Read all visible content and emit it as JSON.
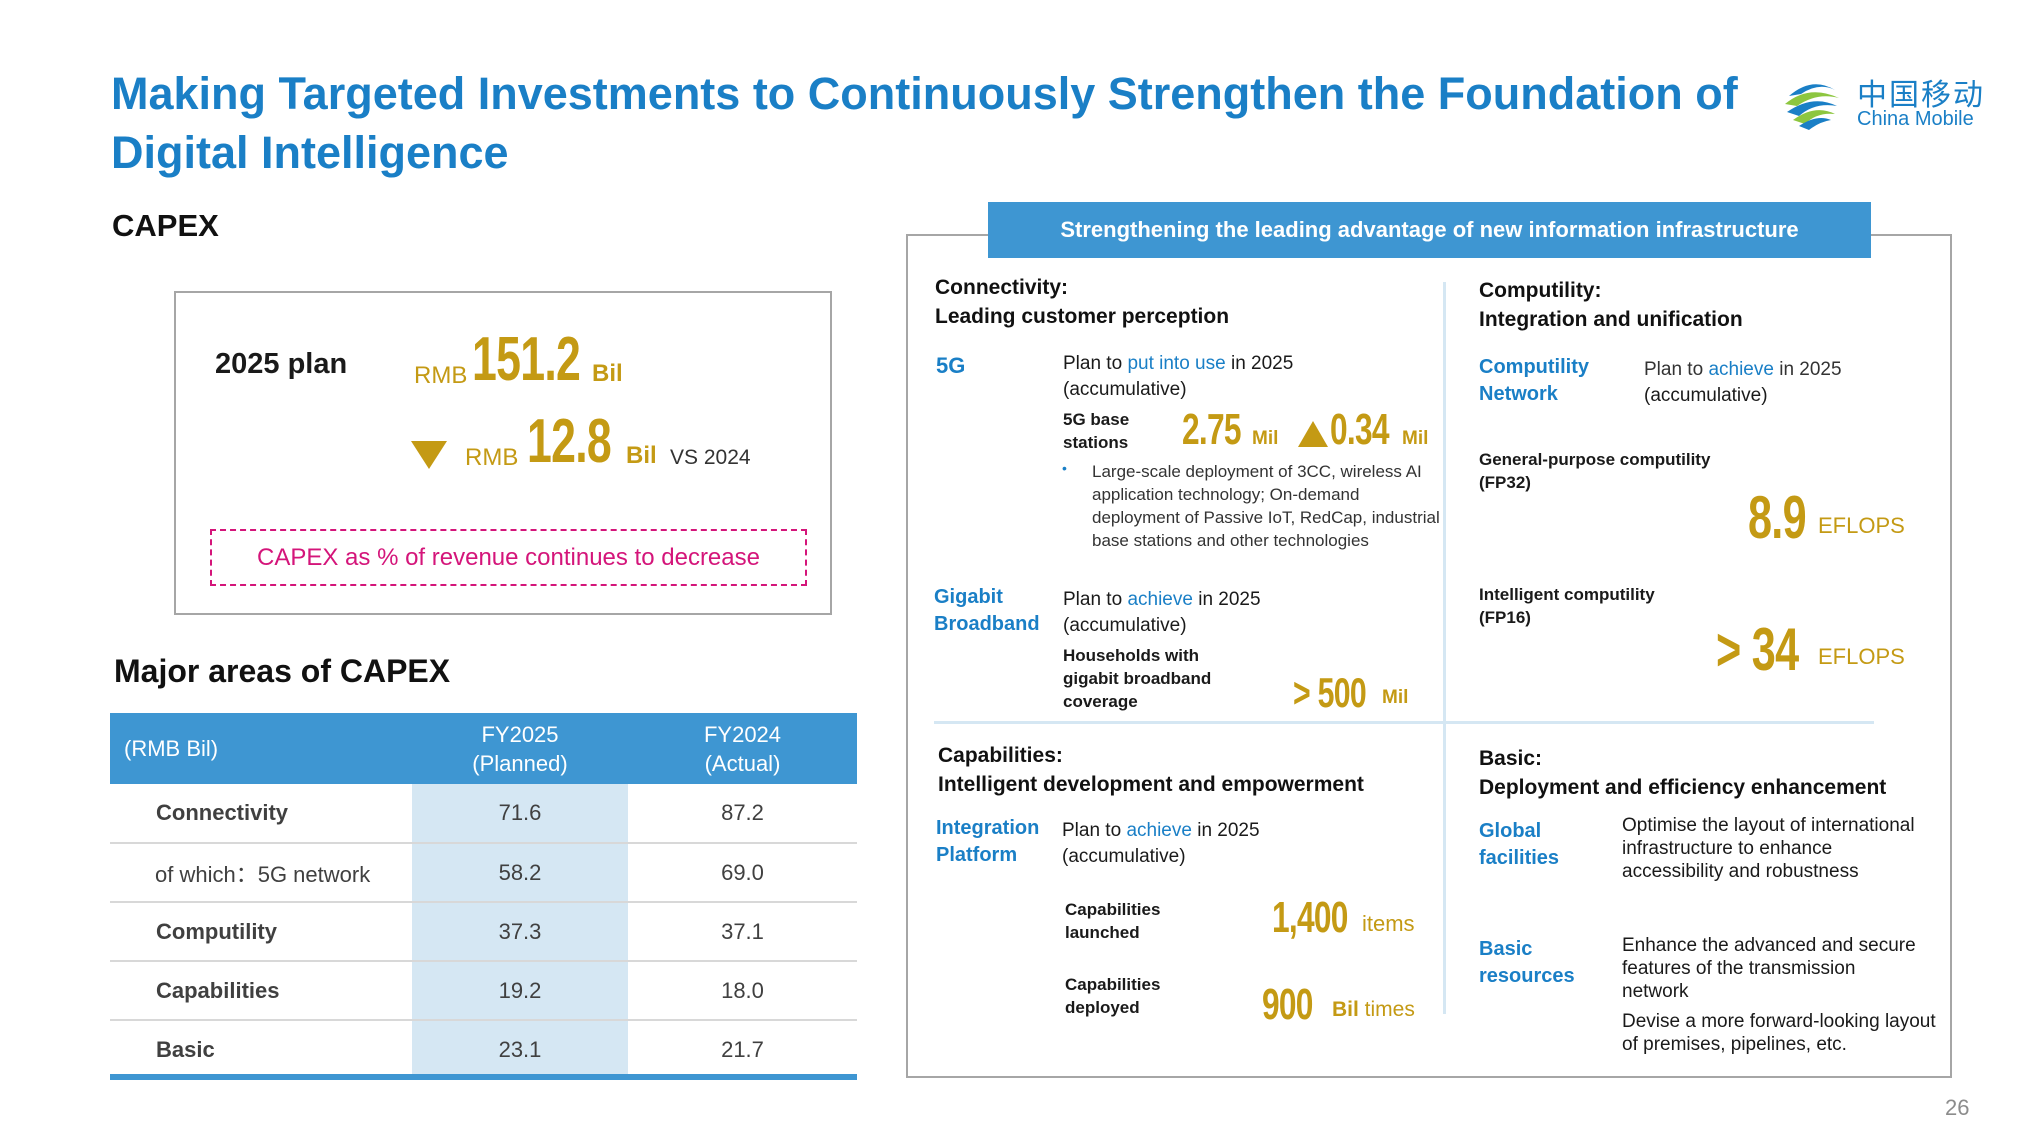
{
  "title": "Making Targeted Investments to Continuously Strengthen the Foundation of Digital Intelligence",
  "logo": {
    "cn": "中国移动",
    "en": "China Mobile",
    "icon": "china-mobile-logo"
  },
  "capex": {
    "heading": "CAPEX",
    "plan_label": "2025 plan",
    "plan_currency": "RMB",
    "plan_value": "151.2",
    "plan_unit": "Bil",
    "change_currency": "RMB",
    "change_value": "12.8",
    "change_unit": "Bil",
    "change_compare": "VS 2024",
    "note": "CAPEX as % of revenue continues to decrease"
  },
  "major": {
    "heading": "Major areas of CAPEX",
    "columns": [
      "(RMB Bil)",
      "FY2025\n(Planned)",
      "FY2024\n(Actual)"
    ],
    "col1": {
      "line1": "FY2025",
      "line2": "(Planned)"
    },
    "col2": {
      "line1": "FY2024",
      "line2": "(Actual)"
    },
    "rows": [
      {
        "label": "Connectivity",
        "fy2025": "71.6",
        "fy2024": "87.2"
      },
      {
        "label": "of which：5G network",
        "fy2025": "58.2",
        "fy2024": "69.0"
      },
      {
        "label": "Computility",
        "fy2025": "37.3",
        "fy2024": "37.1"
      },
      {
        "label": "Capabilities",
        "fy2025": "19.2",
        "fy2024": "18.0"
      },
      {
        "label": "Basic",
        "fy2025": "23.1",
        "fy2024": "21.7"
      }
    ]
  },
  "banner": "Strengthening the leading advantage of new information infrastructure",
  "connectivity": {
    "h1": "Connectivity:",
    "h2": "Leading customer perception",
    "g5": {
      "label": "5G",
      "plan_a": "Plan to ",
      "plan_b": "put into use",
      "plan_c": " in 2025",
      "accum": "(accumulative)",
      "metric_l1": "5G base",
      "metric_l2": "stations",
      "value": "2.75",
      "unit": "Mil",
      "delta": "0.34",
      "delta_unit": "Mil",
      "bullet": "Large-scale deployment of 3CC, wireless AI application technology; On-demand deployment of Passive IoT, RedCap, industrial base stations and other technologies"
    },
    "gig": {
      "label_l1": "Gigabit",
      "label_l2": "Broadband",
      "plan_a": "Plan to ",
      "plan_b": "achieve",
      "plan_c": " in 2025",
      "accum": "(accumulative)",
      "metric_l1": "Households with",
      "metric_l2": "gigabit broadband",
      "metric_l3": "coverage",
      "value": "> 500",
      "unit": "Mil"
    }
  },
  "computility": {
    "h1": "Computility:",
    "h2": "Integration and unification",
    "net_l1": "Computility",
    "net_l2": "Network",
    "plan_a": "Plan to ",
    "plan_b": "achieve",
    "plan_c": " in 2025",
    "accum": "(accumulative)",
    "gp_l1": "General-purpose computility",
    "gp_l2": "(FP32)",
    "gp_value": "8.9",
    "gp_unit": "EFLOPS",
    "ic_l1": "Intelligent computility",
    "ic_l2": "(FP16)",
    "ic_value": "> 34",
    "ic_unit": "EFLOPS"
  },
  "capabilities": {
    "h1": "Capabilities:",
    "h2": "Intelligent development and empowerment",
    "label_l1": "Integration",
    "label_l2": "Platform",
    "plan_a": "Plan to ",
    "plan_b": "achieve",
    "plan_c": " in 2025",
    "accum": "(accumulative)",
    "launched_l1": "Capabilities",
    "launched_l2": "launched",
    "launched_value": "1,400",
    "launched_unit": "items",
    "deployed_l1": "Capabilities",
    "deployed_l2": "deployed",
    "deployed_value": "900",
    "deployed_unit_b": "Bil",
    "deployed_unit_n": " times"
  },
  "basic": {
    "h1": "Basic:",
    "h2": "Deployment and efficiency enhancement",
    "global_l1": "Global",
    "global_l2": "facilities",
    "global_text": "Optimise the layout of international infrastructure to enhance accessibility and robustness",
    "res_l1": "Basic",
    "res_l2": "resources",
    "res_text1": "Enhance the advanced and secure features of the transmission network",
    "res_text2": "Devise a more forward-looking layout of premises, pipelines, etc."
  },
  "page_number": "26",
  "colors": {
    "title_blue": "#1a7fc6",
    "table_blue": "#3e96d2",
    "gold": "#c49a14",
    "magenta": "#d4157a",
    "highlight": "#d5e7f3"
  }
}
